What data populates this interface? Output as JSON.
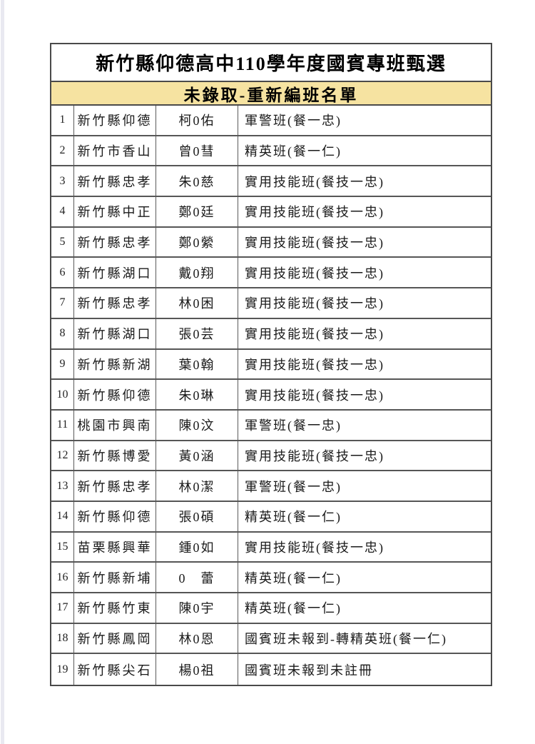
{
  "page": {
    "title": "新竹縣仰德高中110學年度國賓專班甄選",
    "subtitle": "未錄取-重新編班名單",
    "colors": {
      "subtitle_background": "#F6E3A1",
      "table_border": "#4A4A4A",
      "page_edge_strip": "#E9E9F1"
    }
  },
  "table": {
    "rows": [
      {
        "no": "1",
        "school": "新竹縣仰德",
        "name": "柯0佑",
        "assignment": "軍警班(餐一忠)"
      },
      {
        "no": "2",
        "school": "新竹市香山",
        "name": "曾0彗",
        "assignment": "精英班(餐一仁)"
      },
      {
        "no": "3",
        "school": "新竹縣忠孝",
        "name": "朱0慈",
        "assignment": "實用技能班(餐技一忠)"
      },
      {
        "no": "4",
        "school": "新竹縣中正",
        "name": "鄭0廷",
        "assignment": "實用技能班(餐技一忠)"
      },
      {
        "no": "5",
        "school": "新竹縣忠孝",
        "name": "鄭0縈",
        "assignment": "實用技能班(餐技一忠)"
      },
      {
        "no": "6",
        "school": "新竹縣湖口",
        "name": "戴0翔",
        "assignment": "實用技能班(餐技一忠)"
      },
      {
        "no": "7",
        "school": "新竹縣忠孝",
        "name": "林0困",
        "assignment": "實用技能班(餐技一忠)"
      },
      {
        "no": "8",
        "school": "新竹縣湖口",
        "name": "張0芸",
        "assignment": "實用技能班(餐技一忠)"
      },
      {
        "no": "9",
        "school": "新竹縣新湖",
        "name": "葉0翰",
        "assignment": "實用技能班(餐技一忠)"
      },
      {
        "no": "10",
        "school": "新竹縣仰德",
        "name": "朱0琳",
        "assignment": "實用技能班(餐技一忠)"
      },
      {
        "no": "11",
        "school": "桃園市興南",
        "name": "陳0汶",
        "assignment": "軍警班(餐一忠)"
      },
      {
        "no": "12",
        "school": "新竹縣博愛",
        "name": "黃0涵",
        "assignment": "實用技能班(餐技一忠)"
      },
      {
        "no": "13",
        "school": "新竹縣忠孝",
        "name": "林0潔",
        "assignment": "軍警班(餐一忠)"
      },
      {
        "no": "14",
        "school": "新竹縣仰德",
        "name": "張0碩",
        "assignment": "精英班(餐一仁)"
      },
      {
        "no": "15",
        "school": "苗栗縣興華",
        "name": "鍾0如",
        "assignment": "實用技能班(餐技一忠)"
      },
      {
        "no": "16",
        "school": "新竹縣新埔",
        "name": "0　蕾",
        "assignment": "精英班(餐一仁)"
      },
      {
        "no": "17",
        "school": "新竹縣竹東",
        "name": "陳0宇",
        "assignment": "精英班(餐一仁)"
      },
      {
        "no": "18",
        "school": "新竹縣鳳岡",
        "name": "林0恩",
        "assignment": "國賓班未報到-轉精英班(餐一仁)"
      },
      {
        "no": "19",
        "school": "新竹縣尖石",
        "name": "楊0祖",
        "assignment": "國賓班未報到未註冊"
      }
    ]
  }
}
